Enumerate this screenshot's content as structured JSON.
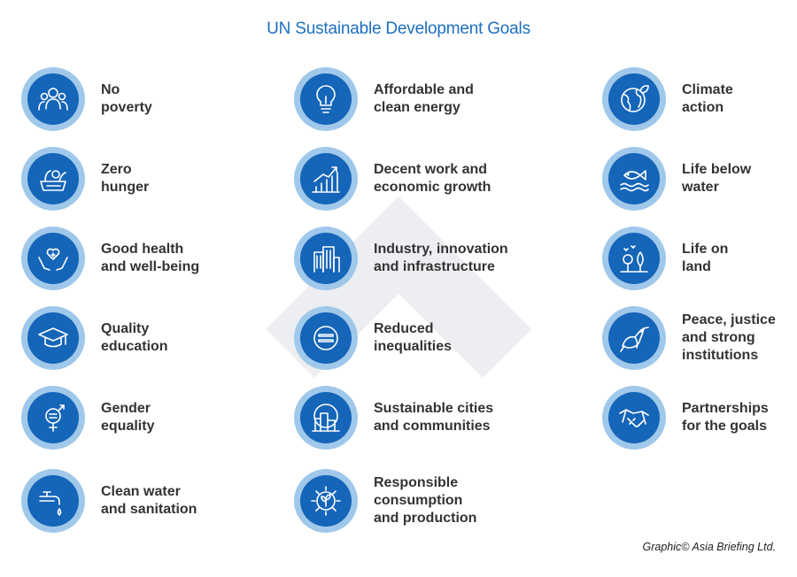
{
  "title": "UN Sustainable Development Goals",
  "credit": "Graphic© Asia Briefing Ltd.",
  "colors": {
    "accent": "#1d6fc0",
    "badge_outer": "#9fc8ea",
    "badge_inner": "#1565b8",
    "text": "#333333"
  },
  "goals": [
    {
      "label": "No\npoverty",
      "icon": "people-group-icon"
    },
    {
      "label": "Zero\nhunger",
      "icon": "food-basket-icon"
    },
    {
      "label": "Good health\nand well-being",
      "icon": "hands-heart-icon"
    },
    {
      "label": "Quality\neducation",
      "icon": "graduation-cap-icon"
    },
    {
      "label": "Gender\nequality",
      "icon": "gender-symbol-icon"
    },
    {
      "label": "Clean water\nand sanitation",
      "icon": "water-tap-icon"
    },
    {
      "label": "Affordable and\nclean energy",
      "icon": "light-bulb-icon"
    },
    {
      "label": "Decent work and\neconomic growth",
      "icon": "growth-chart-icon"
    },
    {
      "label": "Industry, innovation\nand infrastructure",
      "icon": "buildings-icon"
    },
    {
      "label": "Reduced\ninequalities",
      "icon": "equal-sign-icon"
    },
    {
      "label": "Sustainable cities\nand communities",
      "icon": "city-icon"
    },
    {
      "label": "Responsible\nconsumption\nand production",
      "icon": "gear-leaf-icon"
    },
    {
      "label": "Climate\naction",
      "icon": "globe-leaf-icon"
    },
    {
      "label": "Life below\nwater",
      "icon": "fish-waves-icon"
    },
    {
      "label": "Life on\nland",
      "icon": "trees-birds-icon"
    },
    {
      "label": "Peace, justice\nand strong\ninstitutions",
      "icon": "dove-icon"
    },
    {
      "label": "Partnerships\nfor the goals",
      "icon": "handshake-icon"
    }
  ]
}
